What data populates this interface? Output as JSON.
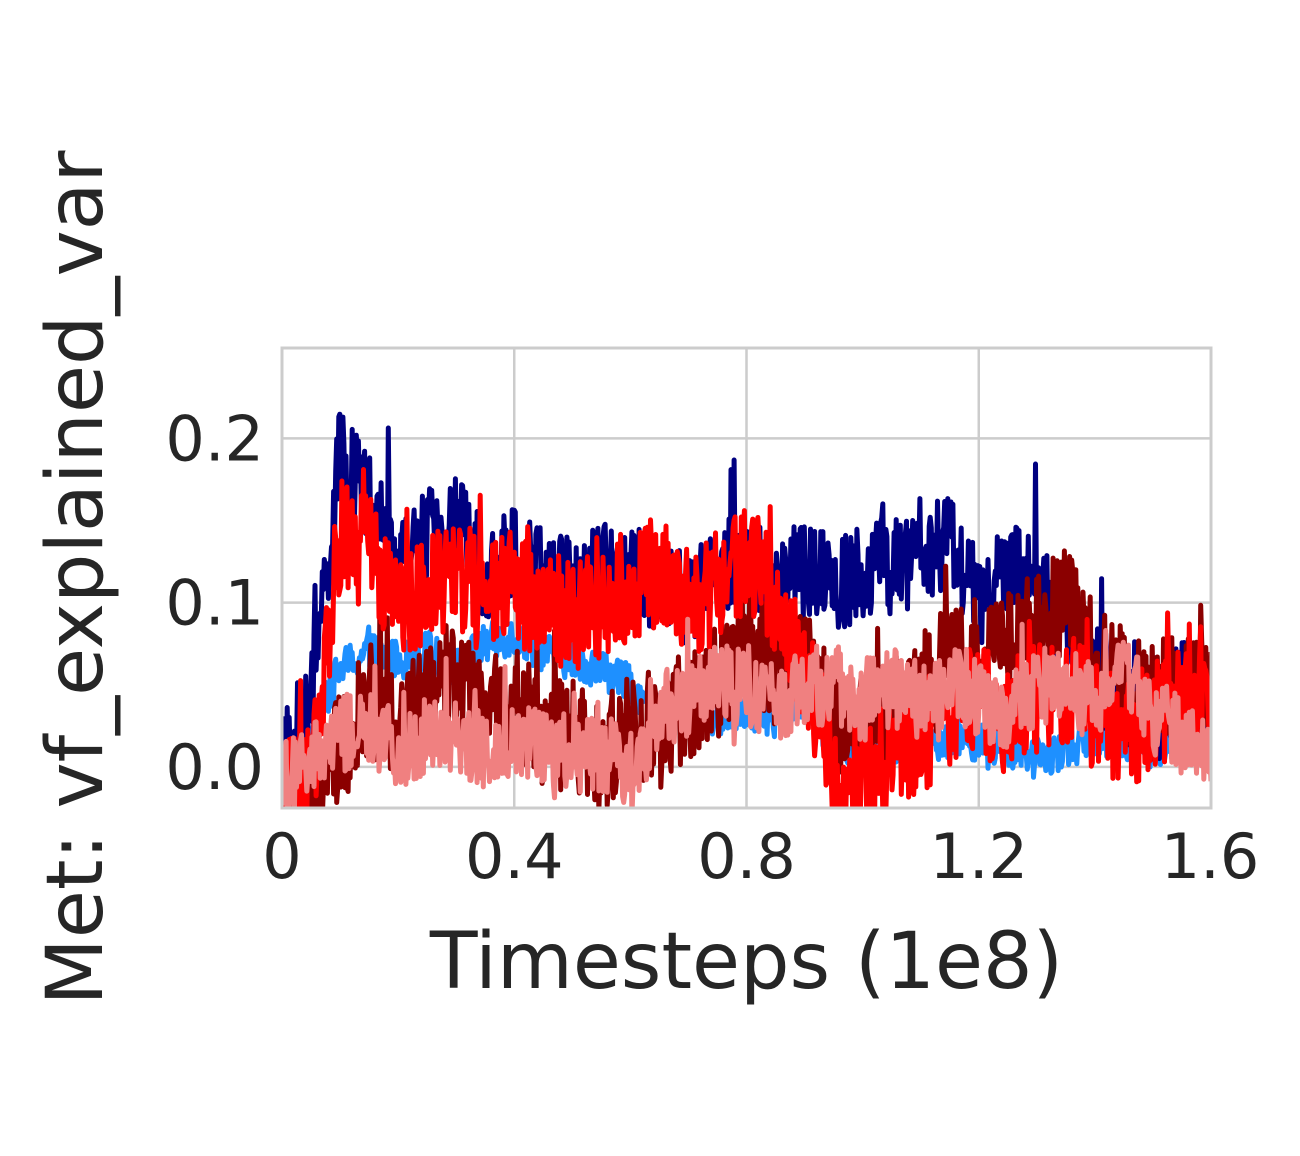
{
  "chart_data": {
    "type": "line",
    "title": "",
    "xlabel": "Timesteps (1e8)",
    "ylabel": "Met: vf_explained_var",
    "xlim": [
      0,
      1.6
    ],
    "ylim": [
      -0.025,
      0.255
    ],
    "xticks": [
      0,
      0.4,
      0.8,
      1.2,
      1.6
    ],
    "xtick_labels": [
      "0",
      "0.4",
      "0.8",
      "1.2",
      "1.6"
    ],
    "yticks": [
      0.0,
      0.1,
      0.2
    ],
    "ytick_labels": [
      "0.0",
      "0.1",
      "0.2"
    ],
    "grid": true,
    "legend": "none",
    "x": [
      0.0,
      0.05,
      0.1,
      0.15,
      0.2,
      0.25,
      0.3,
      0.35,
      0.4,
      0.45,
      0.5,
      0.55,
      0.6,
      0.65,
      0.7,
      0.75,
      0.8,
      0.85,
      0.9,
      0.95,
      1.0,
      1.05,
      1.1,
      1.15,
      1.2,
      1.25,
      1.3,
      1.35,
      1.4,
      1.45,
      1.5,
      1.55,
      1.6
    ],
    "series": [
      {
        "color": "#1e90ff",
        "values": [
          -0.01,
          0.02,
          0.06,
          0.07,
          0.065,
          0.07,
          0.06,
          0.075,
          0.08,
          0.07,
          0.065,
          0.06,
          0.05,
          0.03,
          0.04,
          0.03,
          0.035,
          0.03,
          0.04,
          0.015,
          0.01,
          0.015,
          0.01,
          0.02,
          0.015,
          0.01,
          0.005,
          0.01,
          0.02,
          0.015,
          0.01,
          0.02,
          0.01
        ]
      },
      {
        "color": "#000080",
        "values": [
          0.0,
          0.04,
          0.19,
          0.16,
          0.12,
          0.14,
          0.15,
          0.12,
          0.13,
          0.12,
          0.11,
          0.12,
          0.12,
          0.11,
          0.1,
          0.12,
          0.13,
          0.11,
          0.12,
          0.11,
          0.12,
          0.12,
          0.13,
          0.14,
          0.1,
          0.12,
          0.11,
          0.09,
          0.06,
          0.04,
          0.03,
          0.05,
          0.04
        ]
      },
      {
        "color": "#8b0000",
        "values": [
          -0.02,
          -0.02,
          0.01,
          0.04,
          0.03,
          0.04,
          0.05,
          0.03,
          0.04,
          0.02,
          0.02,
          0.0,
          0.03,
          0.02,
          0.04,
          0.05,
          0.08,
          0.06,
          0.07,
          0.03,
          0.02,
          0.04,
          0.05,
          0.06,
          0.07,
          0.08,
          0.09,
          0.1,
          0.07,
          0.05,
          0.04,
          0.05,
          0.04
        ]
      },
      {
        "color": "#ff0000",
        "values": [
          -0.02,
          -0.01,
          0.14,
          0.13,
          0.1,
          0.11,
          0.12,
          0.1,
          0.11,
          0.1,
          0.09,
          0.1,
          0.11,
          0.12,
          0.1,
          0.11,
          0.13,
          0.1,
          0.06,
          0.0,
          -0.01,
          0.01,
          0.02,
          0.03,
          0.04,
          0.03,
          0.04,
          0.05,
          0.03,
          0.02,
          0.03,
          0.04,
          0.03
        ]
      },
      {
        "color": "#f08080",
        "values": [
          -0.01,
          0.0,
          0.02,
          0.02,
          0.01,
          0.02,
          0.02,
          0.01,
          0.02,
          0.01,
          0.0,
          0.01,
          0.0,
          0.03,
          0.04,
          0.05,
          0.05,
          0.04,
          0.05,
          0.05,
          0.04,
          0.05,
          0.04,
          0.05,
          0.04,
          0.03,
          0.05,
          0.05,
          0.04,
          0.06,
          0.03,
          0.02,
          0.01
        ]
      }
    ]
  }
}
